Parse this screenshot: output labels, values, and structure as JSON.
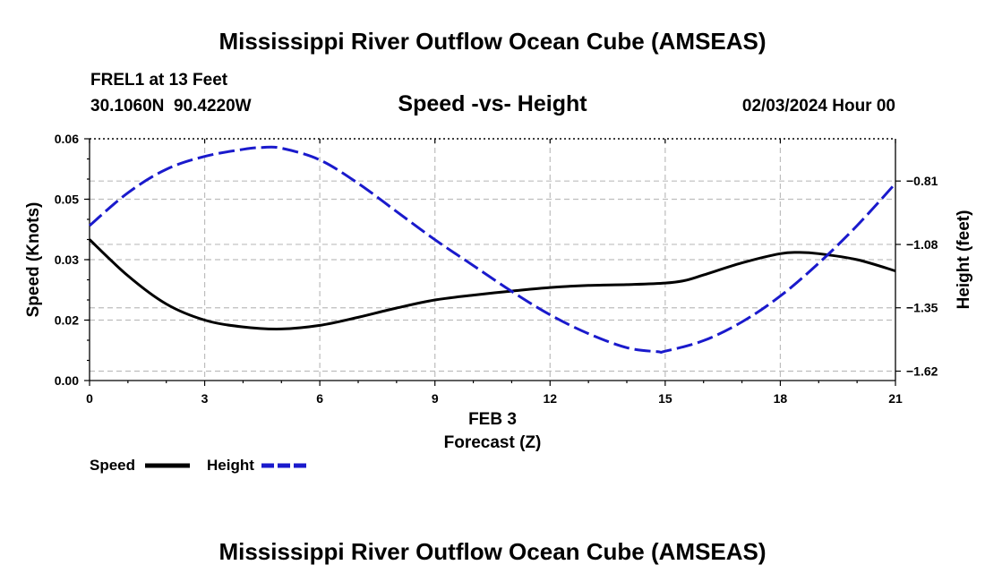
{
  "page": {
    "title": "Mississippi River Outflow Ocean Cube (AMSEAS)",
    "title_repeat": "Mississippi River Outflow Ocean Cube (AMSEAS)"
  },
  "station": {
    "name": "FREL1 at 13 Feet",
    "coords": "30.1060N  90.4220W",
    "date": "02/03/2024 Hour 00"
  },
  "chart_data": {
    "type": "line",
    "title": "Speed -vs- Height",
    "xlabel": "Forecast (Z)",
    "xlabel_date": "FEB 3",
    "ylabel": "Speed (Knots)",
    "y2label": "Height (feet)",
    "xlim": [
      0,
      21
    ],
    "ylim": [
      0,
      0.06
    ],
    "y2lim": [
      -1.66,
      -0.63
    ],
    "x_ticks": [
      0,
      3,
      6,
      9,
      12,
      15,
      18,
      21
    ],
    "x_tick_labels": [
      "0",
      "3",
      "6",
      "9",
      "12",
      "15",
      "18",
      "21"
    ],
    "y_ticks": [
      0,
      0.015,
      0.03,
      0.045,
      0.06
    ],
    "y_tick_labels": [
      "0.00",
      "0.02",
      "0.03",
      "0.05",
      "0.06"
    ],
    "y2_ticks": [
      -1.62,
      -1.35,
      -1.08,
      -0.81
    ],
    "y2_tick_labels": [
      "-1.62",
      "-1.35",
      "-1.08",
      "-0.81"
    ],
    "grid": true,
    "series": [
      {
        "name": "Speed",
        "axis": "left",
        "color": "#000000",
        "style": "solid",
        "x": [
          0,
          1,
          2,
          3,
          4,
          5,
          6,
          7,
          8,
          9,
          10,
          11,
          12,
          13,
          14,
          15,
          15.5,
          16,
          17,
          18,
          18.5,
          19,
          20,
          21
        ],
        "values": [
          0.035,
          0.026,
          0.019,
          0.015,
          0.0133,
          0.0128,
          0.0137,
          0.0157,
          0.018,
          0.02,
          0.0212,
          0.0222,
          0.0231,
          0.0236,
          0.0238,
          0.0242,
          0.0248,
          0.0262,
          0.0292,
          0.0315,
          0.0318,
          0.0315,
          0.03,
          0.0272
        ]
      },
      {
        "name": "Height",
        "axis": "right",
        "color": "#1a1acc",
        "style": "dashed",
        "x": [
          0,
          1,
          2,
          3,
          4,
          4.5,
          5,
          6,
          7,
          8,
          9,
          10,
          11,
          12,
          13,
          14,
          14.8,
          15,
          16,
          17,
          18,
          19,
          20,
          21
        ],
        "values": [
          -1.0,
          -0.86,
          -0.76,
          -0.705,
          -0.675,
          -0.667,
          -0.67,
          -0.72,
          -0.82,
          -0.94,
          -1.06,
          -1.17,
          -1.28,
          -1.38,
          -1.46,
          -1.52,
          -1.537,
          -1.535,
          -1.49,
          -1.41,
          -1.3,
          -1.16,
          -1.0,
          -0.82
        ]
      }
    ],
    "legend": [
      {
        "label": "Speed",
        "color": "#000000",
        "style": "solid"
      },
      {
        "label": "Height",
        "color": "#1a1acc",
        "style": "dashed"
      }
    ],
    "legend_position": "bottom-left"
  }
}
